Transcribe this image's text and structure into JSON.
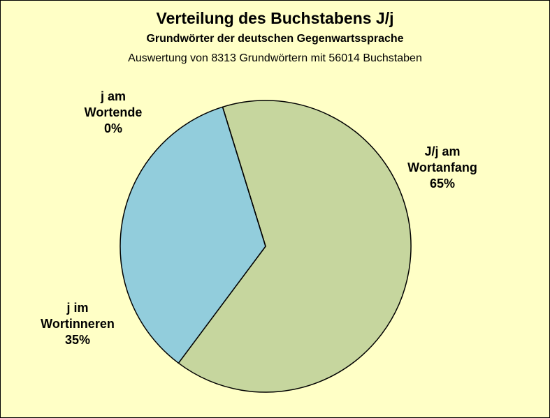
{
  "chart_data": {
    "type": "pie",
    "title": "Verteilung des Buchstabens J/j",
    "subtitle": "Grundwörter der deutschen Gegenwartssprache",
    "note": "Auswertung von 8313 Grundwörtern mit 56014 Buchstaben",
    "categories": [
      "J/j am Wortanfang",
      "j im Wortinneren",
      "j am Wortende"
    ],
    "values": [
      65,
      35,
      0
    ],
    "labels": [
      {
        "lines": [
          "J/j am",
          "Wortanfang",
          "65%"
        ]
      },
      {
        "lines": [
          "j im",
          "Wortinneren",
          "35%"
        ]
      },
      {
        "lines": [
          "j am",
          "Wortende",
          "0%"
        ]
      }
    ],
    "colors": [
      "#C6D69E",
      "#92CDDC",
      "#FFFFC6"
    ],
    "background": "#FFFFC6"
  }
}
